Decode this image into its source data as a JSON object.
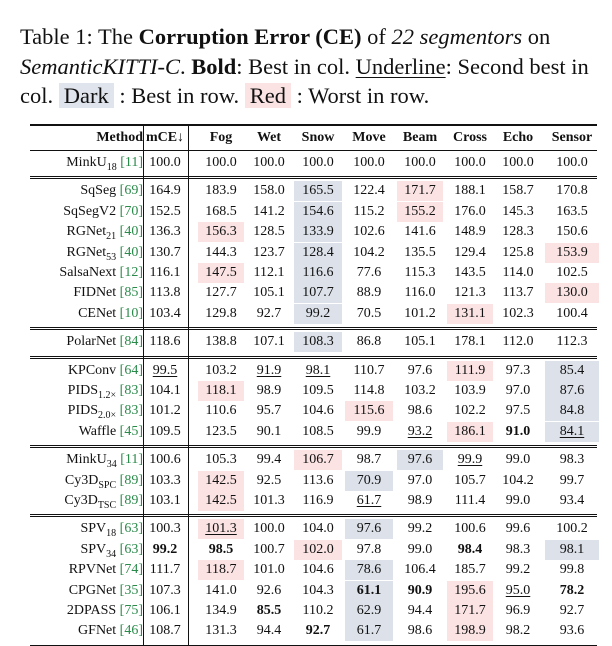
{
  "caption": {
    "lead": "Table 1: The ",
    "bold1": "Corruption Error (CE)",
    "mid1": " of ",
    "ital1": "22 segmentors",
    "mid2": " on ",
    "ital2": "SemanticKITTI-C",
    "mid3": ". ",
    "bold2": "Bold",
    "mid4": ": Best in col. ",
    "underline": "Underline",
    "mid5": ": Second best in col. ",
    "dark": "Dark",
    "mid6": " : Best in row. ",
    "red": "Red",
    "tail": " : Worst in row."
  },
  "headers": [
    "Method",
    "mCE↓",
    "Fog",
    "Wet",
    "Snow",
    "Move",
    "Beam",
    "Cross",
    "Echo",
    "Sensor"
  ],
  "groups": [
    [
      {
        "name": "MinkU",
        "sub": "18",
        "ref": "[11]",
        "cells": [
          "100.0",
          "100.0",
          "100.0",
          "100.0",
          "100.0",
          "100.0",
          "100.0",
          "100.0",
          "100.0"
        ]
      }
    ],
    [
      {
        "name": "SqSeg",
        "sub": "",
        "ref": "[69]",
        "cells": [
          "164.9",
          "183.9",
          "158.0",
          "165.5",
          "122.4",
          "171.7",
          "188.1",
          "158.7",
          "170.8"
        ]
      },
      {
        "name": "SqSegV2",
        "sub": "",
        "ref": "[70]",
        "cells": [
          "152.5",
          "168.5",
          "141.2",
          "154.6",
          "115.2",
          "155.2",
          "176.0",
          "145.3",
          "163.5"
        ]
      },
      {
        "name": "RGNet",
        "sub": "21",
        "ref": "[40]",
        "cells": [
          "136.3",
          "156.3",
          "128.5",
          "133.9",
          "102.6",
          "141.6",
          "148.9",
          "128.3",
          "150.6"
        ]
      },
      {
        "name": "RGNet",
        "sub": "53",
        "ref": "[40]",
        "cells": [
          "130.7",
          "144.3",
          "123.7",
          "128.4",
          "104.2",
          "135.5",
          "129.4",
          "125.8",
          "153.9"
        ]
      },
      {
        "name": "SalsaNext",
        "sub": "",
        "ref": "[12]",
        "cells": [
          "116.1",
          "147.5",
          "112.1",
          "116.6",
          "77.6",
          "115.3",
          "143.5",
          "114.0",
          "102.5"
        ]
      },
      {
        "name": "FIDNet",
        "sub": "",
        "ref": "[85]",
        "cells": [
          "113.8",
          "127.7",
          "105.1",
          "107.7",
          "88.9",
          "116.0",
          "121.3",
          "113.7",
          "130.0"
        ]
      },
      {
        "name": "CENet",
        "sub": "",
        "ref": "[10]",
        "cells": [
          "103.4",
          "129.8",
          "92.7",
          "99.2",
          "70.5",
          "101.2",
          "131.1",
          "102.3",
          "100.4"
        ]
      }
    ],
    [
      {
        "name": "PolarNet",
        "sub": "",
        "ref": "[84]",
        "cells": [
          "118.6",
          "138.8",
          "107.1",
          "108.3",
          "86.8",
          "105.1",
          "178.1",
          "112.0",
          "112.3"
        ]
      }
    ],
    [
      {
        "name": "KPConv",
        "sub": "",
        "ref": "[64]",
        "cells": [
          "99.5",
          "103.2",
          "91.9",
          "98.1",
          "110.7",
          "97.6",
          "111.9",
          "97.3",
          "85.4"
        ]
      },
      {
        "name": "PIDS",
        "sub": "1.2×",
        "ref": "[83]",
        "cells": [
          "104.1",
          "118.1",
          "98.9",
          "109.5",
          "114.8",
          "103.2",
          "103.9",
          "97.0",
          "87.6"
        ]
      },
      {
        "name": "PIDS",
        "sub": "2.0×",
        "ref": "[83]",
        "cells": [
          "101.2",
          "110.6",
          "95.7",
          "104.6",
          "115.6",
          "98.6",
          "102.2",
          "97.5",
          "84.8"
        ]
      },
      {
        "name": "Waffle",
        "sub": "",
        "ref": "[45]",
        "cells": [
          "109.5",
          "123.5",
          "90.1",
          "108.5",
          "99.9",
          "93.2",
          "186.1",
          "91.0",
          "84.1"
        ]
      }
    ],
    [
      {
        "name": "MinkU",
        "sub": "34",
        "ref": "[11]",
        "cells": [
          "100.6",
          "105.3",
          "99.4",
          "106.7",
          "98.7",
          "97.6",
          "99.9",
          "99.0",
          "98.3"
        ]
      },
      {
        "name": "Cy3D",
        "sub": "SPC",
        "ref": "[89]",
        "cells": [
          "103.3",
          "142.5",
          "92.5",
          "113.6",
          "70.9",
          "97.0",
          "105.7",
          "104.2",
          "99.7"
        ]
      },
      {
        "name": "Cy3D",
        "sub": "TSC",
        "ref": "[89]",
        "cells": [
          "103.1",
          "142.5",
          "101.3",
          "116.9",
          "61.7",
          "98.9",
          "111.4",
          "99.0",
          "93.4"
        ]
      }
    ],
    [
      {
        "name": "SPV",
        "sub": "18",
        "ref": "[63]",
        "cells": [
          "100.3",
          "101.3",
          "100.0",
          "104.0",
          "97.6",
          "99.2",
          "100.6",
          "99.6",
          "100.2"
        ]
      },
      {
        "name": "SPV",
        "sub": "34",
        "ref": "[63]",
        "cells": [
          "99.2",
          "98.5",
          "100.7",
          "102.0",
          "97.8",
          "99.0",
          "98.4",
          "98.3",
          "98.1"
        ]
      },
      {
        "name": "RPVNet",
        "sub": "",
        "ref": "[74]",
        "cells": [
          "111.7",
          "118.7",
          "101.0",
          "104.6",
          "78.6",
          "106.4",
          "185.7",
          "99.2",
          "99.8"
        ]
      },
      {
        "name": "CPGNet",
        "sub": "",
        "ref": "[35]",
        "cells": [
          "107.3",
          "141.0",
          "92.6",
          "104.3",
          "61.1",
          "90.9",
          "195.6",
          "95.0",
          "78.2"
        ]
      },
      {
        "name": "2DPASS",
        "sub": "",
        "ref": "[75]",
        "cells": [
          "106.1",
          "134.9",
          "85.5",
          "110.2",
          "62.9",
          "94.4",
          "171.7",
          "96.9",
          "92.7"
        ]
      },
      {
        "name": "GFNet",
        "sub": "",
        "ref": "[46]",
        "cells": [
          "108.7",
          "131.3",
          "94.4",
          "92.7",
          "61.7",
          "98.6",
          "198.9",
          "98.2",
          "93.6"
        ]
      }
    ]
  ],
  "colors": {
    "dark_cell": "#dde2ea",
    "red_cell": "#fbe3e3",
    "ref_color": "#2a8a4a"
  }
}
